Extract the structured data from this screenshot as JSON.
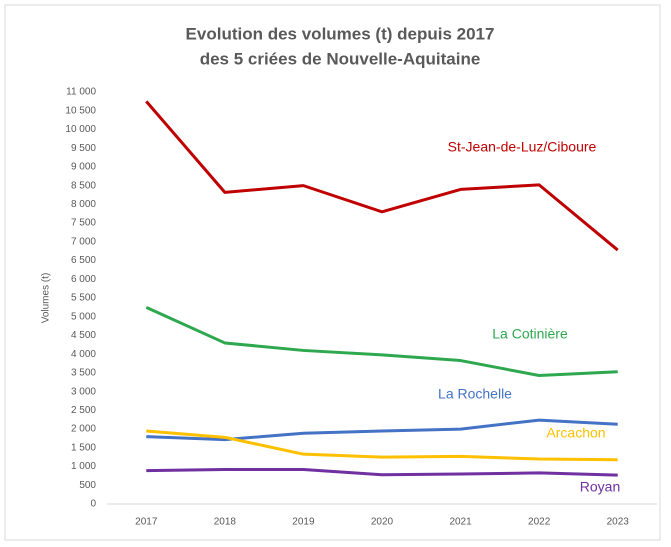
{
  "chart_data": {
    "type": "line",
    "title": [
      "Evolution des volumes (t) depuis 2017",
      "des 5 criées de Nouvelle-Aquitaine"
    ],
    "y_label": "Volumes (t)",
    "categories": [
      "2017",
      "2018",
      "2019",
      "2020",
      "2021",
      "2022",
      "2023"
    ],
    "series": [
      {
        "name": "St-Jean-de-Luz/Ciboure",
        "color": "#c00000",
        "values": [
          10750,
          8320,
          8500,
          7800,
          8400,
          8520,
          6780
        ]
      },
      {
        "name": "La Cotinière",
        "color": "#2ea84e",
        "values": [
          5250,
          4300,
          4100,
          3980,
          3830,
          3430,
          3530
        ]
      },
      {
        "name": "La Rochelle",
        "color": "#4472c4",
        "values": [
          1800,
          1720,
          1890,
          1950,
          2000,
          2240,
          2130
        ]
      },
      {
        "name": "Arcachon",
        "color": "#ffc000",
        "values": [
          1950,
          1780,
          1330,
          1250,
          1270,
          1200,
          1180
        ]
      },
      {
        "name": "Royan",
        "color": "#7030a0",
        "values": [
          890,
          920,
          920,
          780,
          800,
          830,
          770
        ]
      }
    ],
    "ylim": [
      0,
      11000
    ],
    "yticks": [
      0,
      500,
      {
        "value": 1000,
        "label": "1 000"
      },
      {
        "value": 1500,
        "label": "1 500"
      },
      {
        "value": 2000,
        "label": "2 000"
      },
      {
        "value": 2500,
        "label": "2 500"
      },
      {
        "value": 3000,
        "label": "3 000"
      },
      {
        "value": 3500,
        "label": "3 500"
      },
      {
        "value": 4000,
        "label": "4 000"
      },
      {
        "value": 4500,
        "label": "4 500"
      },
      {
        "value": 5000,
        "label": "5 000"
      },
      {
        "value": 5500,
        "label": "5 500"
      },
      {
        "value": 6000,
        "label": "6 000"
      },
      {
        "value": 6500,
        "label": "6 500"
      },
      {
        "value": 7000,
        "label": "7 000"
      },
      {
        "value": 7500,
        "label": "7 500"
      },
      {
        "value": 8000,
        "label": "8 000"
      },
      {
        "value": 8500,
        "label": "8 500"
      },
      {
        "value": 9000,
        "label": "9 000"
      },
      {
        "value": 9500,
        "label": "9 500"
      },
      {
        "value": 10000,
        "label": "10 000"
      },
      {
        "value": 10500,
        "label": "10 500"
      },
      {
        "value": 11000,
        "label": "11 000"
      }
    ],
    "grid": false
  }
}
